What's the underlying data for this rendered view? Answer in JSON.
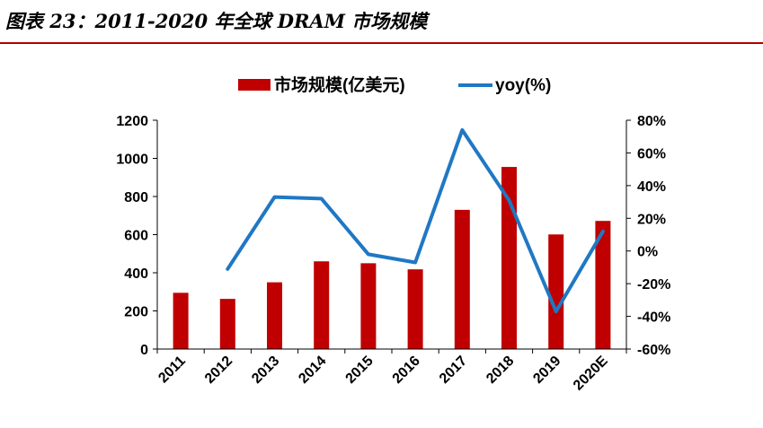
{
  "title": "图表 23：2011-2020 年全球 DRAM 市场规模",
  "colors": {
    "bar": "#c00000",
    "line": "#1f78c4",
    "rule": "#b10000"
  },
  "chart_data": {
    "type": "bar",
    "categories": [
      "2011",
      "2012",
      "2013",
      "2014",
      "2015",
      "2016",
      "2017",
      "2018",
      "2019",
      "2020E"
    ],
    "series": [
      {
        "name": "市场规模(亿美元)",
        "type": "bar",
        "axis": "left",
        "values": [
          295,
          263,
          350,
          460,
          450,
          418,
          730,
          955,
          601,
          672
        ]
      },
      {
        "name": "yoy(%)",
        "type": "line",
        "axis": "right",
        "values": [
          null,
          -11,
          33,
          32,
          -2,
          -7,
          74,
          31,
          -37,
          12
        ]
      }
    ],
    "y_left": {
      "ylim": [
        0,
        1200
      ],
      "ticks": [
        "0",
        "200",
        "400",
        "600",
        "800",
        "1000",
        "1200"
      ]
    },
    "y_right": {
      "ylim": [
        -60,
        80
      ],
      "ticks": [
        "-60%",
        "-40%",
        "-20%",
        "0%",
        "20%",
        "40%",
        "60%",
        "80%"
      ]
    },
    "legend": {
      "position": "top",
      "items": [
        "市场规模(亿美元)",
        "yoy(%)"
      ]
    }
  }
}
